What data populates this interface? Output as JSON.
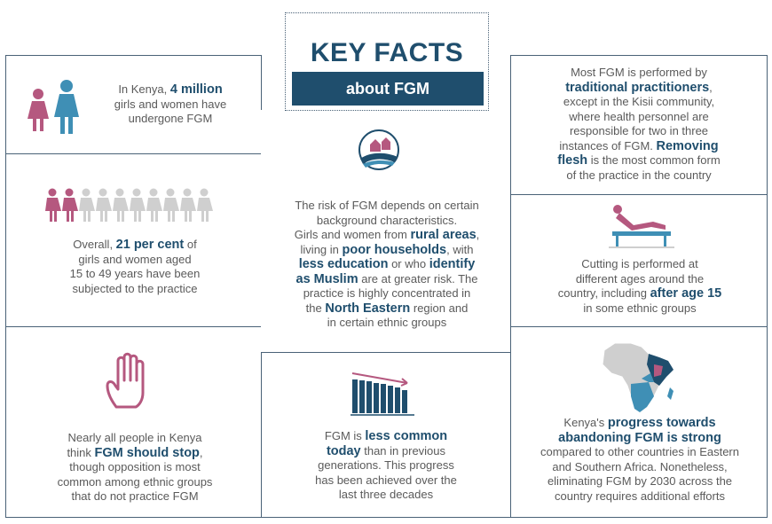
{
  "title": {
    "main": "KEY FACTS",
    "sub": "about FGM"
  },
  "box1": {
    "p1": "In Kenya, ",
    "h1": "4 million",
    "p2": "girls and women have",
    "p3": "undergone FGM"
  },
  "box2": {
    "p1": "Overall, ",
    "h1": "21 per cent",
    "p2": " of",
    "l2": "girls and women aged",
    "l3": "15 to 49 years have been",
    "l4": "subjected to the practice",
    "icons_total": 10,
    "icons_highlighted": 2
  },
  "box3": {
    "l1": "Nearly all people in Kenya",
    "p1": "think ",
    "h1": "FGM should stop",
    "p2": ",",
    "l3": "though opposition is most",
    "l4": "common among ethnic groups",
    "l5": "that do not practice FGM"
  },
  "center": {
    "l1": "The risk of FGM depends on certain",
    "l2": "background characteristics.",
    "l3a": "Girls and women from ",
    "h3": "rural areas",
    "l3b": ",",
    "l4a": "living in ",
    "h4": "poor households",
    "l4b": ", with",
    "h5a": "less education",
    "l5": " or who ",
    "h5b": "identify",
    "h6": "as Muslim",
    "l6": " are at greater risk. The",
    "l7": "practice is highly concentrated in",
    "l8a": "the ",
    "h8": "North Eastern",
    "l8b": " region and",
    "l9": "in certain ethnic groups"
  },
  "bottom_center": {
    "l1a": "FGM is ",
    "h1": "less common",
    "h2": "today",
    "l2": " than in previous",
    "l3": "generations. This progress",
    "l4": "has been achieved over the",
    "l5": "last three decades"
  },
  "right1": {
    "l1": "Most FGM is performed by",
    "h2": "traditional practitioners",
    "l2": ",",
    "l3": "except in the Kisii community,",
    "l4": "where health personnel are",
    "l5": "responsible for two in three",
    "l6a": "instances of FGM. ",
    "h6": "Removing",
    "h7": "flesh",
    "l7": " is the most common form",
    "l8": "of the practice in the country"
  },
  "right2": {
    "l1": "Cutting is performed at",
    "l2": "different ages around the",
    "l3a": "country, including ",
    "h3": "after age 15",
    "l4": "in some ethnic groups"
  },
  "right3": {
    "l1a": "Kenya's ",
    "h1": "progress towards",
    "h2": "abandoning FGM is strong",
    "l3": "compared to other countries in Eastern",
    "l4": "and Southern Africa. Nonetheless,",
    "l5": "eliminating FGM by 2030 across the",
    "l6": "country requires additional efforts"
  },
  "colors": {
    "navy": "#1f4e6d",
    "pink": "#b5587f",
    "grey": "#cfcfcf",
    "teal": "#3f8fb5"
  }
}
